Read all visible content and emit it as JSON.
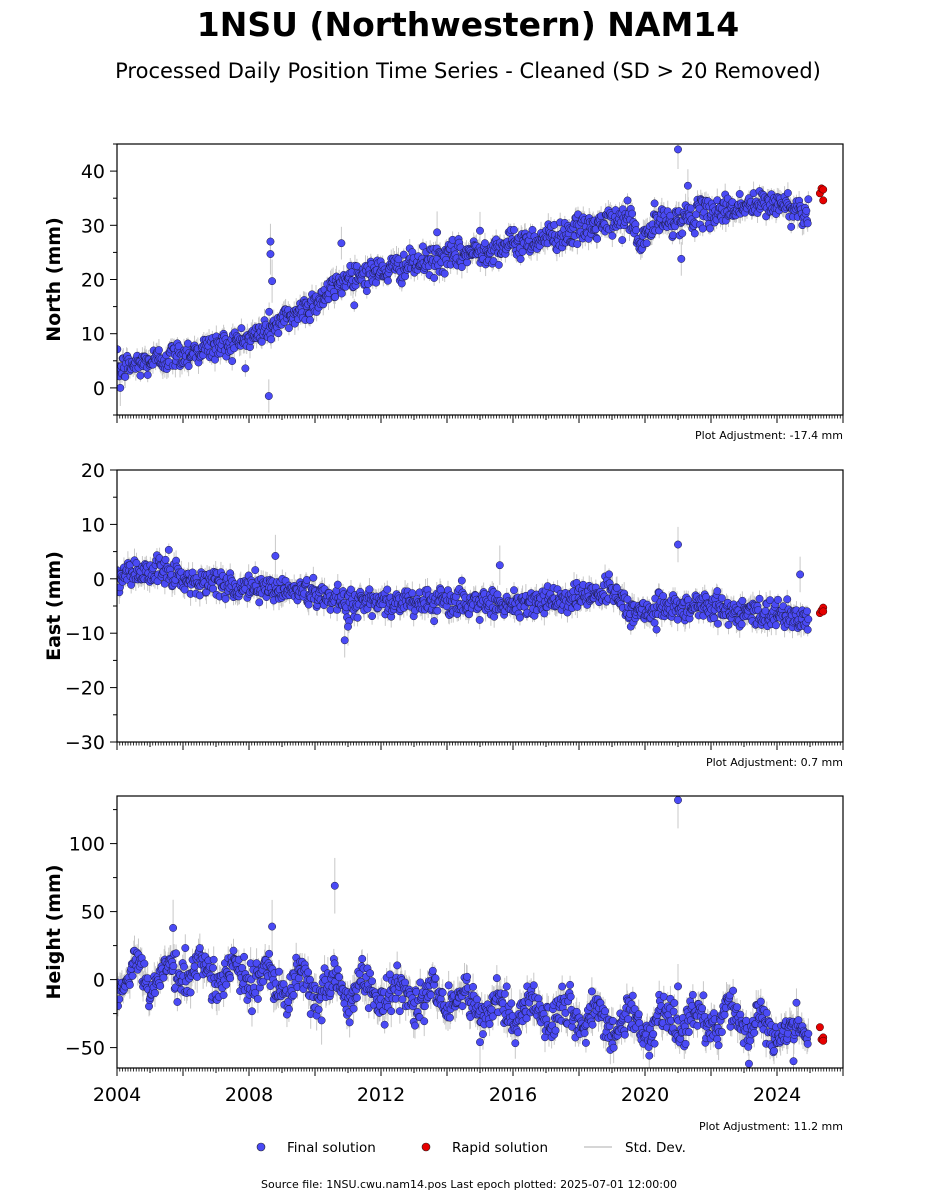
{
  "title": "1NSU (Northwestern) NAM14",
  "subtitle": "Processed Daily Position Time Series - Cleaned (SD > 20 Removed)",
  "source": "Source file: 1NSU.cwu.nam14.pos  Last epoch plotted: 2025-07-01 12:00:00",
  "legend": {
    "final": "Final solution",
    "rapid": "Rapid solution",
    "std": "Std. Dev."
  },
  "colors": {
    "final": "#4a4af5",
    "rapid": "#e60000",
    "std": "#c8c8c8"
  },
  "chart_data": [
    {
      "type": "scatter",
      "ylabel": "North (mm)",
      "adjustment": "Plot Adjustment: -17.4 mm",
      "xlim": [
        2004.0,
        2026.0
      ],
      "ylim": [
        -5,
        45
      ],
      "yticks": [
        0,
        10,
        20,
        30,
        40
      ],
      "xticks": [],
      "xtick_labels": [],
      "trend": [
        [
          2004.0,
          3.5
        ],
        [
          2008.0,
          9.0
        ],
        [
          2009.5,
          14.0
        ],
        [
          2010.3,
          17.0
        ],
        [
          2011.0,
          20.5
        ],
        [
          2012.0,
          21.5
        ],
        [
          2014.0,
          24.0
        ],
        [
          2016.0,
          26.5
        ],
        [
          2018.0,
          29.0
        ],
        [
          2019.0,
          30.5
        ],
        [
          2019.6,
          31.5
        ],
        [
          2019.8,
          26.0
        ],
        [
          2020.3,
          30.5
        ],
        [
          2021.0,
          31.0
        ],
        [
          2022.0,
          32.5
        ],
        [
          2023.0,
          33.5
        ],
        [
          2024.0,
          34.0
        ],
        [
          2024.9,
          32.5
        ]
      ],
      "scatter_sd": 1.3,
      "outliers": [
        [
          2004.1,
          0.0
        ],
        [
          2008.65,
          27.0
        ],
        [
          2008.65,
          24.7
        ],
        [
          2008.7,
          19.7
        ],
        [
          2008.6,
          -1.5
        ],
        [
          2010.8,
          26.7
        ],
        [
          2013.7,
          28.7
        ],
        [
          2015.0,
          29.0
        ],
        [
          2021.0,
          44.0
        ],
        [
          2021.1,
          23.8
        ],
        [
          2021.3,
          37.3
        ]
      ],
      "rapid": [
        [
          2025.3,
          35.9
        ],
        [
          2025.35,
          36.8
        ],
        [
          2025.4,
          36.6
        ],
        [
          2025.4,
          34.6
        ]
      ]
    },
    {
      "type": "scatter",
      "ylabel": "East (mm)",
      "adjustment": "Plot Adjustment: 0.7 mm",
      "xlim": [
        2004.0,
        2026.0
      ],
      "ylim": [
        -30,
        20
      ],
      "yticks": [
        -30,
        -20,
        -10,
        0,
        10,
        20
      ],
      "xticks": [],
      "xtick_labels": [],
      "trend": [
        [
          2004.0,
          0.5
        ],
        [
          2005.5,
          1.5
        ],
        [
          2006.0,
          0.0
        ],
        [
          2008.0,
          -1.5
        ],
        [
          2009.0,
          -2.0
        ],
        [
          2010.0,
          -2.5
        ],
        [
          2011.0,
          -4.5
        ],
        [
          2013.0,
          -4.0
        ],
        [
          2015.0,
          -4.5
        ],
        [
          2016.0,
          -4.5
        ],
        [
          2018.0,
          -3.5
        ],
        [
          2019.0,
          -2.0
        ],
        [
          2019.5,
          -6.0
        ],
        [
          2021.0,
          -5.5
        ],
        [
          2022.0,
          -5.0
        ],
        [
          2023.0,
          -6.5
        ],
        [
          2024.0,
          -6.5
        ],
        [
          2024.9,
          -7.5
        ]
      ],
      "scatter_sd": 1.3,
      "outliers": [
        [
          2008.8,
          4.2
        ],
        [
          2010.9,
          -11.3
        ],
        [
          2011.0,
          -8.8
        ],
        [
          2015.6,
          2.5
        ],
        [
          2021.0,
          6.3
        ],
        [
          2024.7,
          0.8
        ]
      ],
      "rapid": [
        [
          2025.3,
          -6.3
        ],
        [
          2025.35,
          -5.8
        ],
        [
          2025.4,
          -5.3
        ],
        [
          2025.4,
          -6.0
        ]
      ]
    },
    {
      "type": "scatter",
      "ylabel": "Height (mm)",
      "adjustment": "Plot Adjustment: 11.2 mm",
      "xlim": [
        2004.0,
        2026.0
      ],
      "ylim": [
        -65,
        135
      ],
      "yticks": [
        -50,
        0,
        50,
        100
      ],
      "xticks": [
        2004,
        2008,
        2012,
        2016,
        2020,
        2024
      ],
      "xtick_labels": [
        "2004",
        "2008",
        "2012",
        "2016",
        "2020",
        "2024"
      ],
      "trend": [
        [
          2004.0,
          0.0
        ],
        [
          2006.0,
          6.0
        ],
        [
          2008.0,
          2.0
        ],
        [
          2010.0,
          -6.0
        ],
        [
          2012.0,
          -10.0
        ],
        [
          2014.0,
          -15.0
        ],
        [
          2016.0,
          -22.0
        ],
        [
          2018.0,
          -28.0
        ],
        [
          2020.0,
          -33.0
        ],
        [
          2021.0,
          -30.0
        ],
        [
          2022.0,
          -30.0
        ],
        [
          2023.0,
          -32.0
        ],
        [
          2024.0,
          -36.0
        ],
        [
          2024.9,
          -38.0
        ]
      ],
      "scatter_sd": 7.0,
      "seasonal_amp": 9.0,
      "outliers": [
        [
          2005.7,
          38.0
        ],
        [
          2008.7,
          39.0
        ],
        [
          2010.6,
          69.0
        ],
        [
          2010.2,
          -30.0
        ],
        [
          2015.0,
          -46.0
        ],
        [
          2021.0,
          132.0
        ],
        [
          2021.0,
          -5.0
        ],
        [
          2024.5,
          -60.0
        ]
      ],
      "rapid": [
        [
          2025.3,
          -35.0
        ],
        [
          2025.35,
          -44.0
        ],
        [
          2025.4,
          -42.5
        ],
        [
          2025.4,
          -45.0
        ]
      ]
    }
  ]
}
